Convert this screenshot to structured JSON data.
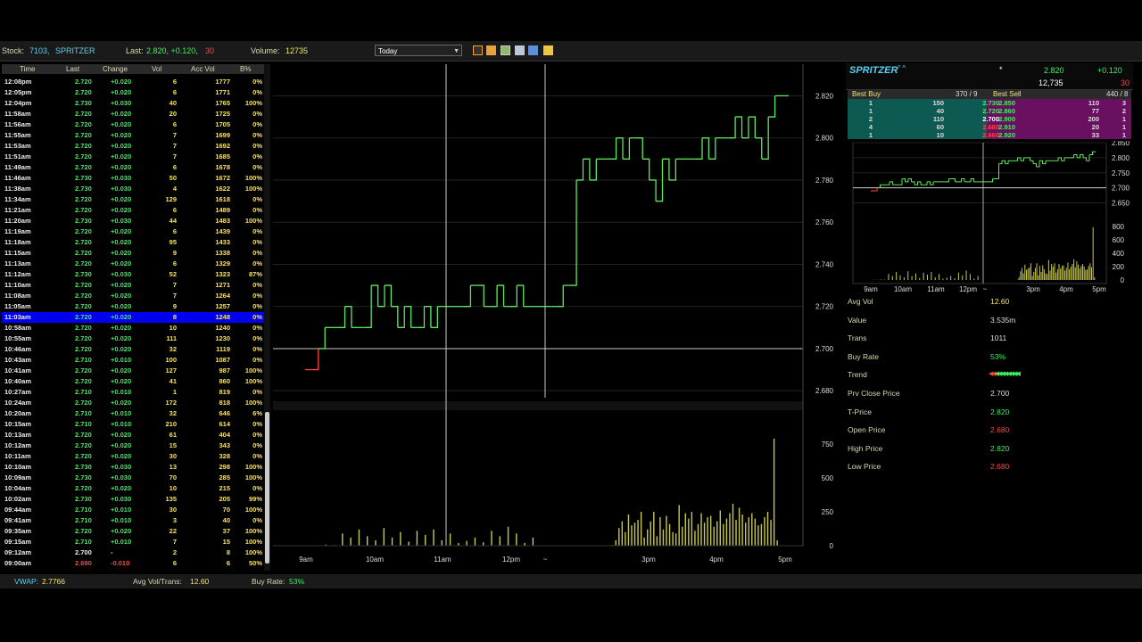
{
  "header": {
    "stock_label": "Stock:",
    "stock_code": "7103,",
    "stock_name": "SPRITZER",
    "last_label": "Last:",
    "last_value": "2.820, +0.120,",
    "last_trades": "30",
    "volume_label": "Volume:",
    "volume_value": "12735",
    "period_select": "Today"
  },
  "trade_table": {
    "columns": [
      "Time",
      "Last",
      "Change",
      "Vol",
      "Acc Vol",
      "B%"
    ],
    "rows": [
      [
        "12:08pm",
        "2.720",
        "+0.020",
        "6",
        "1777",
        "0%"
      ],
      [
        "12:05pm",
        "2.720",
        "+0.020",
        "6",
        "1771",
        "0%"
      ],
      [
        "12:04pm",
        "2.730",
        "+0.030",
        "40",
        "1765",
        "100%"
      ],
      [
        "11:58am",
        "2.720",
        "+0.020",
        "20",
        "1725",
        "0%"
      ],
      [
        "11:56am",
        "2.720",
        "+0.020",
        "6",
        "1705",
        "0%"
      ],
      [
        "11:55am",
        "2.720",
        "+0.020",
        "7",
        "1699",
        "0%"
      ],
      [
        "11:53am",
        "2.720",
        "+0.020",
        "7",
        "1692",
        "0%"
      ],
      [
        "11:51am",
        "2.720",
        "+0.020",
        "7",
        "1685",
        "0%"
      ],
      [
        "11:49am",
        "2.720",
        "+0.020",
        "6",
        "1678",
        "0%"
      ],
      [
        "11:46am",
        "2.730",
        "+0.030",
        "50",
        "1672",
        "100%"
      ],
      [
        "11:38am",
        "2.730",
        "+0.030",
        "4",
        "1622",
        "100%"
      ],
      [
        "11:34am",
        "2.720",
        "+0.020",
        "129",
        "1618",
        "0%"
      ],
      [
        "11:21am",
        "2.720",
        "+0.020",
        "6",
        "1489",
        "0%"
      ],
      [
        "11:20am",
        "2.730",
        "+0.030",
        "44",
        "1483",
        "100%"
      ],
      [
        "11:19am",
        "2.720",
        "+0.020",
        "6",
        "1439",
        "0%"
      ],
      [
        "11:18am",
        "2.720",
        "+0.020",
        "95",
        "1433",
        "0%"
      ],
      [
        "11:15am",
        "2.720",
        "+0.020",
        "9",
        "1338",
        "0%"
      ],
      [
        "11:13am",
        "2.720",
        "+0.020",
        "6",
        "1329",
        "0%"
      ],
      [
        "11:12am",
        "2.730",
        "+0.030",
        "52",
        "1323",
        "87%"
      ],
      [
        "11:10am",
        "2.720",
        "+0.020",
        "7",
        "1271",
        "0%"
      ],
      [
        "11:08am",
        "2.720",
        "+0.020",
        "7",
        "1264",
        "0%"
      ],
      [
        "11:05am",
        "2.720",
        "+0.020",
        "9",
        "1257",
        "0%"
      ],
      [
        "11:03am",
        "2.720",
        "+0.020",
        "8",
        "1248",
        "0%"
      ],
      [
        "10:58am",
        "2.720",
        "+0.020",
        "10",
        "1240",
        "0%"
      ],
      [
        "10:55am",
        "2.720",
        "+0.020",
        "111",
        "1230",
        "0%"
      ],
      [
        "10:46am",
        "2.720",
        "+0.020",
        "32",
        "1119",
        "0%"
      ],
      [
        "10:43am",
        "2.710",
        "+0.010",
        "100",
        "1087",
        "0%"
      ],
      [
        "10:41am",
        "2.720",
        "+0.020",
        "127",
        "987",
        "100%"
      ],
      [
        "10:40am",
        "2.720",
        "+0.020",
        "41",
        "860",
        "100%"
      ],
      [
        "10:27am",
        "2.710",
        "+0.010",
        "1",
        "819",
        "0%"
      ],
      [
        "10:24am",
        "2.720",
        "+0.020",
        "172",
        "818",
        "100%"
      ],
      [
        "10:20am",
        "2.710",
        "+0.010",
        "32",
        "646",
        "6%"
      ],
      [
        "10:15am",
        "2.710",
        "+0.010",
        "210",
        "614",
        "0%"
      ],
      [
        "10:13am",
        "2.720",
        "+0.020",
        "61",
        "404",
        "0%"
      ],
      [
        "10:12am",
        "2.720",
        "+0.020",
        "15",
        "343",
        "0%"
      ],
      [
        "10:11am",
        "2.720",
        "+0.020",
        "30",
        "328",
        "0%"
      ],
      [
        "10:10am",
        "2.730",
        "+0.030",
        "13",
        "298",
        "100%"
      ],
      [
        "10:09am",
        "2.730",
        "+0.030",
        "70",
        "285",
        "100%"
      ],
      [
        "10:04am",
        "2.720",
        "+0.020",
        "10",
        "215",
        "0%"
      ],
      [
        "10:02am",
        "2.730",
        "+0.030",
        "135",
        "205",
        "99%"
      ],
      [
        "09:44am",
        "2.710",
        "+0.010",
        "30",
        "70",
        "100%"
      ],
      [
        "09:41am",
        "2.710",
        "+0.010",
        "3",
        "40",
        "0%"
      ],
      [
        "09:35am",
        "2.720",
        "+0.020",
        "22",
        "37",
        "100%"
      ],
      [
        "09:15am",
        "2.710",
        "+0.010",
        "7",
        "15",
        "100%"
      ],
      [
        "09:12am",
        "2.700",
        "-",
        "2",
        "8",
        "100%"
      ],
      [
        "09:00am",
        "2.690",
        "-0.010",
        "6",
        "6",
        "50%"
      ]
    ],
    "highlighted_row": 22
  },
  "chart_data": [
    {
      "type": "line",
      "x_ticks": [
        "9am",
        "10am",
        "11am",
        "12pm",
        "~",
        "3pm",
        "4pm",
        "5pm"
      ],
      "y_ticks": [
        "2.820",
        "2.800",
        "2.780",
        "2.760",
        "2.740",
        "2.720",
        "2.700",
        "2.680"
      ],
      "ylim": [
        2.675,
        2.835
      ],
      "reference_line": 2.7,
      "price": [
        2.69,
        2.69,
        2.7,
        2.71,
        2.71,
        2.71,
        2.72,
        2.71,
        2.71,
        2.71,
        2.73,
        2.72,
        2.73,
        2.72,
        2.71,
        2.72,
        2.71,
        2.71,
        2.72,
        2.71,
        2.72,
        2.72,
        2.72,
        2.72,
        2.72,
        2.73,
        2.73,
        2.72,
        2.72,
        2.73,
        2.72,
        2.72,
        2.73,
        2.72,
        2.72,
        2.72,
        2.72,
        2.72,
        2.72,
        2.73,
        2.73,
        2.78,
        2.79,
        2.78,
        2.79,
        2.79,
        2.79,
        2.8,
        2.79,
        2.8,
        2.8,
        2.79,
        2.78,
        2.77,
        2.79,
        2.78,
        2.79,
        2.79,
        2.79,
        2.79,
        2.8,
        2.79,
        2.8,
        2.8,
        2.8,
        2.81,
        2.8,
        2.81,
        2.8,
        2.79,
        2.81,
        2.82,
        2.82
      ],
      "grid": true
    },
    {
      "type": "bar",
      "y_ticks": [
        "750",
        "500",
        "250",
        "0"
      ],
      "ylim": [
        0,
        1000
      ],
      "values": [
        2,
        4,
        8,
        5,
        90,
        60,
        120,
        70,
        40,
        130,
        60,
        100,
        30,
        110,
        80,
        120,
        40,
        90,
        20,
        35,
        60,
        25,
        110,
        70,
        140,
        90,
        20,
        60,
        5,
        40,
        130,
        180,
        100,
        230,
        150,
        170,
        190,
        250,
        60,
        120,
        180,
        250,
        70,
        210,
        120,
        220,
        160,
        100,
        90,
        300,
        140,
        240,
        200,
        250,
        110,
        160,
        240,
        170,
        210,
        220,
        140,
        180,
        260,
        160,
        200,
        240,
        310,
        190,
        280,
        230,
        170,
        210,
        240,
        200,
        150,
        160,
        210,
        250,
        190,
        790,
        40
      ]
    }
  ],
  "quote": {
    "name": "SPRITZER",
    "name_suffix": "° ^",
    "flag": "*",
    "last": "2.820",
    "change": "+0.120",
    "volume": "12,735",
    "trades": "30"
  },
  "depth": {
    "best_buy_label": "Best Buy",
    "best_buy_total": "370 / 9",
    "best_sell_label": "Best Sell",
    "best_sell_total": "440 / 8",
    "rows": [
      [
        "1",
        "150",
        "2.730",
        "2.850",
        "110",
        "3"
      ],
      [
        "1",
        "40",
        "2.720",
        "2.860",
        "77",
        "2"
      ],
      [
        "2",
        "110",
        "2.700",
        "2.900",
        "200",
        "1"
      ],
      [
        "4",
        "60",
        "2.680",
        "2.910",
        "20",
        "1"
      ],
      [
        "1",
        "10",
        "2.660",
        "2.920",
        "33",
        "1"
      ]
    ]
  },
  "mini_chart": {
    "x_ticks": [
      "9am",
      "10am",
      "11am",
      "12pm",
      "~",
      "3pm",
      "4pm",
      "5pm"
    ],
    "price_ticks": [
      "2.850",
      "2.800",
      "2.750",
      "2.700",
      "2.650"
    ],
    "vol_ticks": [
      "800",
      "600",
      "400",
      "200",
      "0"
    ]
  },
  "stats": [
    {
      "label": "Avg Vol",
      "value": "12.60",
      "color": "#f5e36b"
    },
    {
      "label": "Value",
      "value": "3.535m",
      "color": "#dddddd"
    },
    {
      "label": "Trans",
      "value": "1011",
      "color": "#dddddd"
    },
    {
      "label": "Buy Rate",
      "value": "53%",
      "color": "#3ef05e"
    },
    {
      "label": "Trend",
      "value": "",
      "color": "#dddddd"
    },
    {
      "label": "Prv Close Price",
      "value": "2.700",
      "color": "#dddddd"
    },
    {
      "label": "T-Price",
      "value": "2.820",
      "color": "#3ef05e"
    },
    {
      "label": "Open Price",
      "value": "2.680",
      "color": "#ff4444"
    },
    {
      "label": "High Price",
      "value": "2.820",
      "color": "#3ef05e"
    },
    {
      "label": "Low Price",
      "value": "2.680",
      "color": "#ff4444"
    }
  ],
  "footer": {
    "vwap_label": "VWAP:",
    "vwap_value": "2.7766",
    "avg_label": "Avg Vol/Trans:",
    "avg_value": "12.60",
    "buy_label": "Buy Rate:",
    "buy_value": "53%"
  },
  "colors": {
    "up": "#3ef05e",
    "down": "#ff4444",
    "price_line": "#5fe860",
    "volume_bar": "#c8c850",
    "highlight": "#0000ee"
  }
}
